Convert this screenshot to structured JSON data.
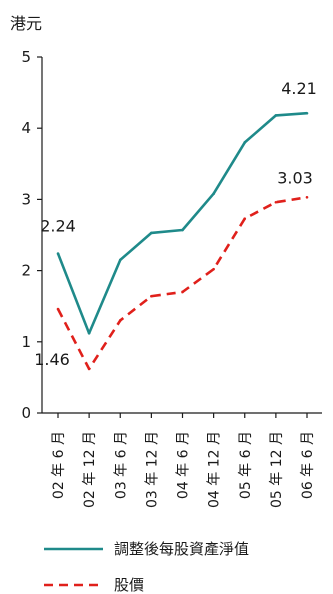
{
  "chart_data": {
    "type": "line",
    "ylabel": "港元",
    "ylim": [
      0,
      5
    ],
    "yticks": [
      0,
      1,
      2,
      3,
      4,
      5
    ],
    "categories": [
      "02 年 6 月",
      "02 年 12 月",
      "03 年 6 月",
      "03 年 12 月",
      "04 年 6 月",
      "04 年 12 月",
      "05 年 6 月",
      "05 年 12 月",
      "06 年 6 月"
    ],
    "series": [
      {
        "name": "調整後每股資產淨值",
        "color": "#1f8a8a",
        "dash": "solid",
        "values": [
          2.24,
          1.12,
          2.15,
          2.53,
          2.57,
          3.08,
          3.8,
          4.18,
          4.21
        ]
      },
      {
        "name": "股價",
        "color": "#e0201b",
        "dash": "dashed",
        "values": [
          1.46,
          0.62,
          1.3,
          1.64,
          1.7,
          2.02,
          2.73,
          2.96,
          3.03
        ]
      }
    ],
    "annotations": [
      {
        "series": 0,
        "index": 0,
        "text": "2.24"
      },
      {
        "series": 1,
        "index": 0,
        "text": "1.46"
      },
      {
        "series": 0,
        "index": 8,
        "text": "4.21"
      },
      {
        "series": 1,
        "index": 8,
        "text": "3.03"
      }
    ],
    "grid": false,
    "legend": "bottom-left"
  }
}
